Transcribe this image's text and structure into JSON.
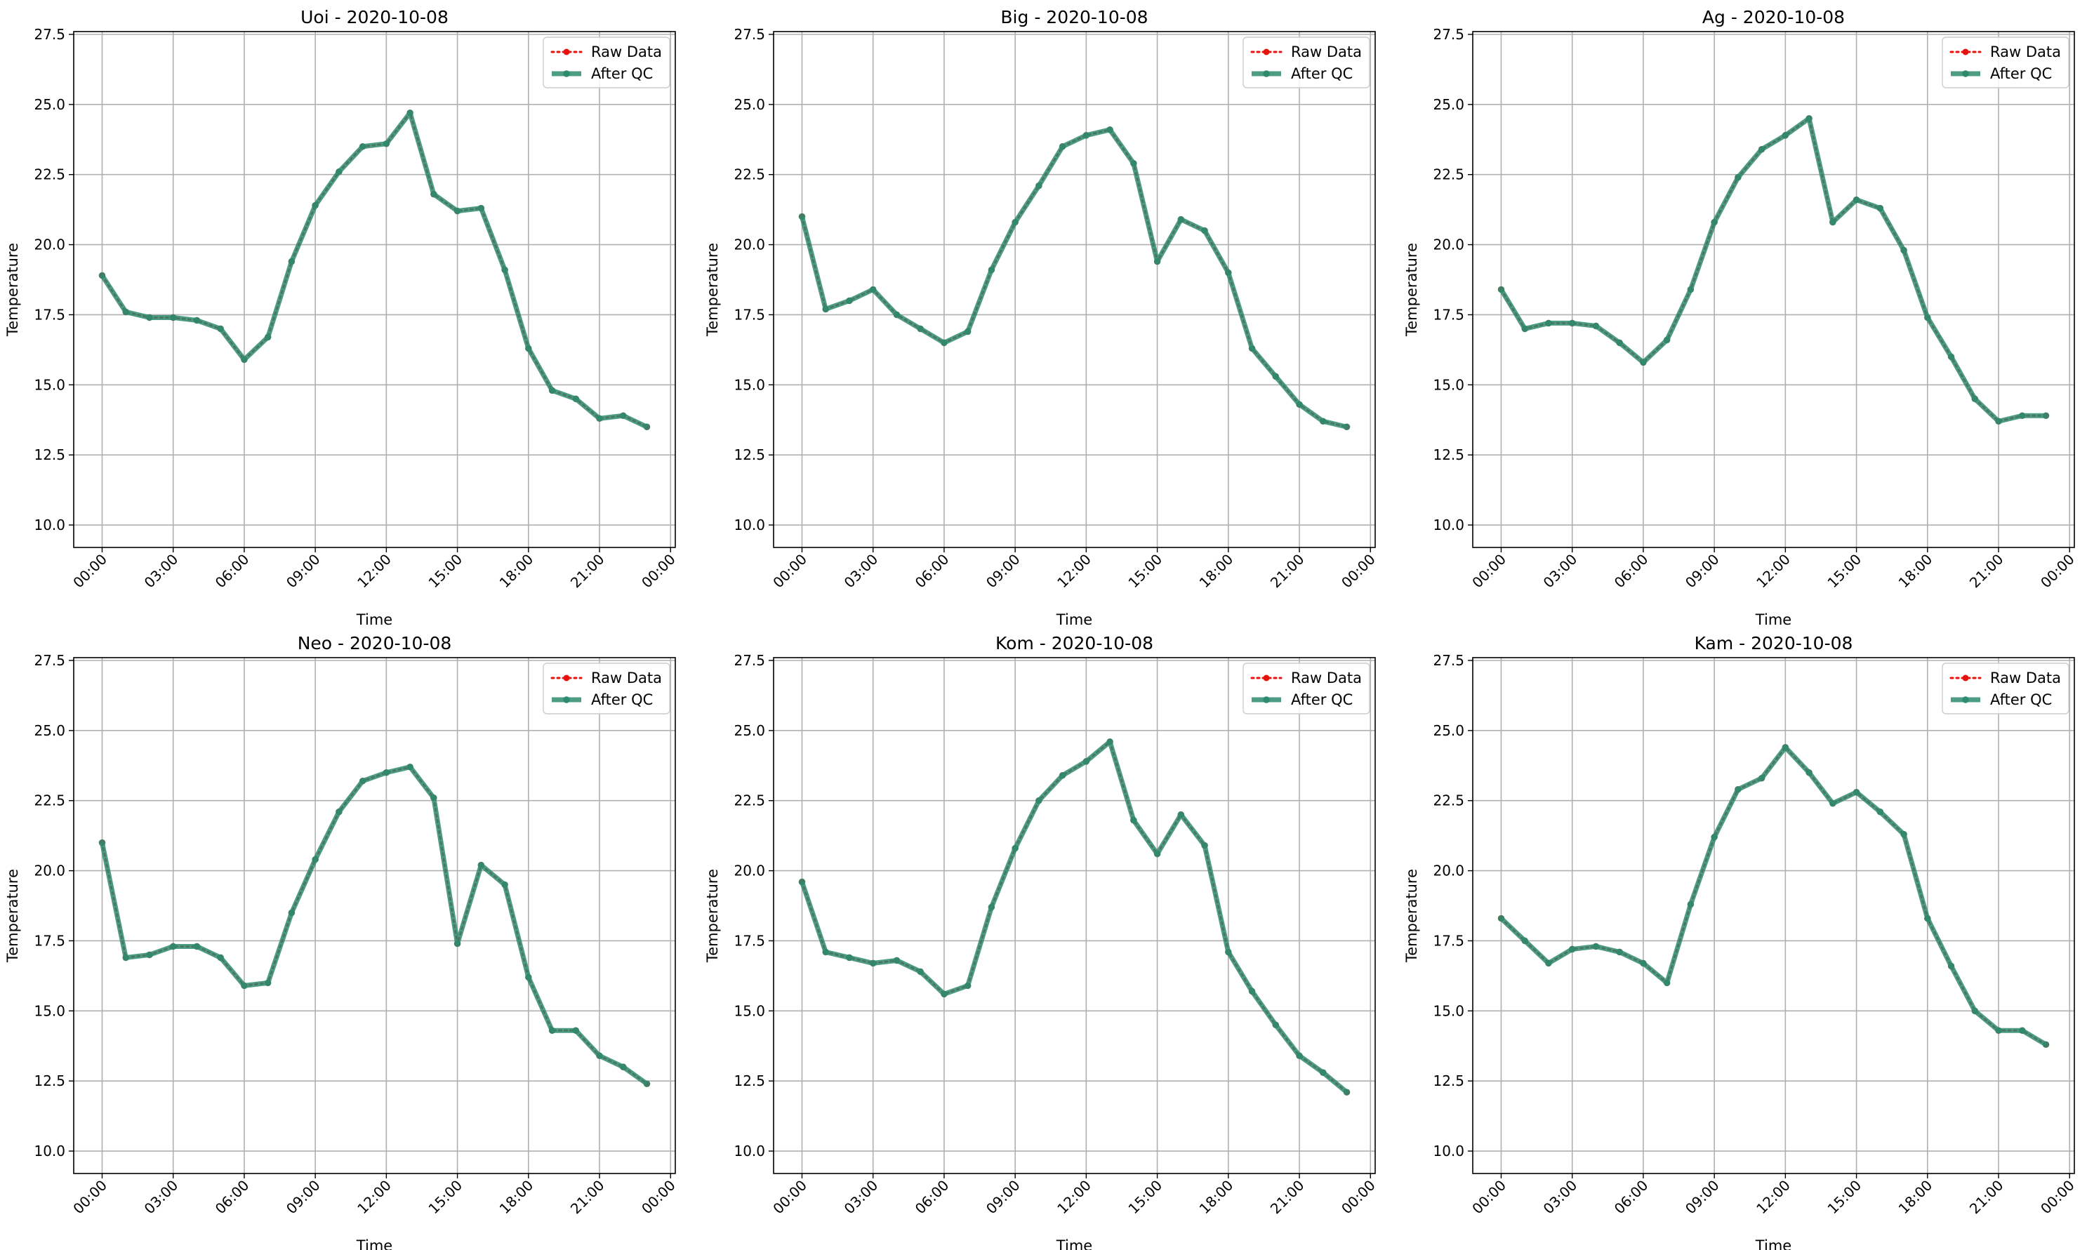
{
  "figure": {
    "ylabel": "Temperature",
    "xlabel": "Time",
    "legend": {
      "raw_label": "Raw Data",
      "qc_label": "After QC",
      "placement": "top-right"
    }
  },
  "colors": {
    "raw": "#e8120c",
    "qc": "#2e8b6e",
    "grid": "#b0b0b0",
    "axis": "#000000"
  },
  "chart_data": [
    {
      "type": "line",
      "title": "Uoi - 2020-10-08",
      "xlabel": "Time",
      "ylabel": "Temperature",
      "xlim": [
        -1.2,
        24.2
      ],
      "ylim": [
        9.2,
        27.6
      ],
      "x_ticks": [
        "00:00",
        "03:00",
        "06:00",
        "09:00",
        "12:00",
        "15:00",
        "18:00",
        "21:00",
        "00:00"
      ],
      "y_ticks": [
        "10.0",
        "12.5",
        "15.0",
        "17.5",
        "20.0",
        "22.5",
        "25.0",
        "27.5"
      ],
      "grid": true,
      "legend": "top-right",
      "x": [
        0,
        1,
        2,
        3,
        4,
        5,
        6,
        7,
        8,
        9,
        10,
        11,
        12,
        13,
        14,
        15,
        16,
        17,
        18,
        19,
        20,
        21,
        22,
        23
      ],
      "series": [
        {
          "name": "Raw Data",
          "values": [
            18.9,
            17.6,
            17.4,
            17.4,
            17.3,
            17.0,
            15.9,
            16.7,
            19.4,
            21.4,
            22.6,
            23.5,
            23.6,
            24.7,
            21.8,
            21.2,
            21.3,
            19.1,
            16.3,
            14.8,
            14.5,
            13.8,
            13.9,
            13.5
          ]
        },
        {
          "name": "After QC",
          "values": [
            18.9,
            17.6,
            17.4,
            17.4,
            17.3,
            17.0,
            15.9,
            16.7,
            19.4,
            21.4,
            22.6,
            23.5,
            23.6,
            24.7,
            21.8,
            21.2,
            21.3,
            19.1,
            16.3,
            14.8,
            14.5,
            13.8,
            13.9,
            13.5
          ]
        }
      ]
    },
    {
      "type": "line",
      "title": "Big - 2020-10-08",
      "xlabel": "Time",
      "ylabel": "Temperature",
      "xlim": [
        -1.2,
        24.2
      ],
      "ylim": [
        9.2,
        27.6
      ],
      "x_ticks": [
        "00:00",
        "03:00",
        "06:00",
        "09:00",
        "12:00",
        "15:00",
        "18:00",
        "21:00",
        "00:00"
      ],
      "y_ticks": [
        "10.0",
        "12.5",
        "15.0",
        "17.5",
        "20.0",
        "22.5",
        "25.0",
        "27.5"
      ],
      "grid": true,
      "legend": "top-right",
      "x": [
        0,
        1,
        2,
        3,
        4,
        5,
        6,
        7,
        8,
        9,
        10,
        11,
        12,
        13,
        14,
        15,
        16,
        17,
        18,
        19,
        20,
        21,
        22,
        23
      ],
      "series": [
        {
          "name": "Raw Data",
          "values": [
            21.0,
            17.7,
            18.0,
            18.4,
            17.5,
            17.0,
            16.5,
            16.9,
            19.1,
            20.8,
            22.1,
            23.5,
            23.9,
            24.1,
            22.9,
            19.4,
            20.9,
            20.5,
            19.0,
            16.3,
            15.3,
            14.3,
            13.7,
            13.5
          ]
        },
        {
          "name": "After QC",
          "values": [
            21.0,
            17.7,
            18.0,
            18.4,
            17.5,
            17.0,
            16.5,
            16.9,
            19.1,
            20.8,
            22.1,
            23.5,
            23.9,
            24.1,
            22.9,
            19.4,
            20.9,
            20.5,
            19.0,
            16.3,
            15.3,
            14.3,
            13.7,
            13.5
          ]
        }
      ]
    },
    {
      "type": "line",
      "title": "Ag - 2020-10-08",
      "xlabel": "Time",
      "ylabel": "Temperature",
      "xlim": [
        -1.2,
        24.2
      ],
      "ylim": [
        9.2,
        27.6
      ],
      "x_ticks": [
        "00:00",
        "03:00",
        "06:00",
        "09:00",
        "12:00",
        "15:00",
        "18:00",
        "21:00",
        "00:00"
      ],
      "y_ticks": [
        "10.0",
        "12.5",
        "15.0",
        "17.5",
        "20.0",
        "22.5",
        "25.0",
        "27.5"
      ],
      "grid": true,
      "legend": "top-right",
      "x": [
        0,
        1,
        2,
        3,
        4,
        5,
        6,
        7,
        8,
        9,
        10,
        11,
        12,
        13,
        14,
        15,
        16,
        17,
        18,
        19,
        20,
        21,
        22,
        23
      ],
      "series": [
        {
          "name": "Raw Data",
          "values": [
            18.4,
            17.0,
            17.2,
            17.2,
            17.1,
            16.5,
            15.8,
            16.6,
            18.4,
            20.8,
            22.4,
            23.4,
            23.9,
            24.5,
            20.8,
            21.6,
            21.3,
            19.8,
            17.4,
            16.0,
            14.5,
            13.7,
            13.9,
            13.9
          ]
        },
        {
          "name": "After QC",
          "values": [
            18.4,
            17.0,
            17.2,
            17.2,
            17.1,
            16.5,
            15.8,
            16.6,
            18.4,
            20.8,
            22.4,
            23.4,
            23.9,
            24.5,
            20.8,
            21.6,
            21.3,
            19.8,
            17.4,
            16.0,
            14.5,
            13.7,
            13.9,
            13.9
          ]
        }
      ]
    },
    {
      "type": "line",
      "title": "Neo - 2020-10-08",
      "xlabel": "Time",
      "ylabel": "Temperature",
      "xlim": [
        -1.2,
        24.2
      ],
      "ylim": [
        9.2,
        27.6
      ],
      "x_ticks": [
        "00:00",
        "03:00",
        "06:00",
        "09:00",
        "12:00",
        "15:00",
        "18:00",
        "21:00",
        "00:00"
      ],
      "y_ticks": [
        "10.0",
        "12.5",
        "15.0",
        "17.5",
        "20.0",
        "22.5",
        "25.0",
        "27.5"
      ],
      "grid": true,
      "legend": "top-right",
      "x": [
        0,
        1,
        2,
        3,
        4,
        5,
        6,
        7,
        8,
        9,
        10,
        11,
        12,
        13,
        14,
        15,
        16,
        17,
        18,
        19,
        20,
        21,
        22,
        23
      ],
      "series": [
        {
          "name": "Raw Data",
          "values": [
            21.0,
            16.9,
            17.0,
            17.3,
            17.3,
            16.9,
            15.9,
            16.0,
            18.5,
            20.4,
            22.1,
            23.2,
            23.5,
            23.7,
            22.6,
            17.4,
            20.2,
            19.5,
            16.2,
            14.3,
            14.3,
            13.4,
            13.0,
            12.4
          ]
        },
        {
          "name": "After QC",
          "values": [
            21.0,
            16.9,
            17.0,
            17.3,
            17.3,
            16.9,
            15.9,
            16.0,
            18.5,
            20.4,
            22.1,
            23.2,
            23.5,
            23.7,
            22.6,
            17.4,
            20.2,
            19.5,
            16.2,
            14.3,
            14.3,
            13.4,
            13.0,
            12.4
          ]
        }
      ]
    },
    {
      "type": "line",
      "title": "Kom - 2020-10-08",
      "xlabel": "Time",
      "ylabel": "Temperature",
      "xlim": [
        -1.2,
        24.2
      ],
      "ylim": [
        9.2,
        27.6
      ],
      "x_ticks": [
        "00:00",
        "03:00",
        "06:00",
        "09:00",
        "12:00",
        "15:00",
        "18:00",
        "21:00",
        "00:00"
      ],
      "y_ticks": [
        "10.0",
        "12.5",
        "15.0",
        "17.5",
        "20.0",
        "22.5",
        "25.0",
        "27.5"
      ],
      "grid": true,
      "legend": "top-right",
      "x": [
        0,
        1,
        2,
        3,
        4,
        5,
        6,
        7,
        8,
        9,
        10,
        11,
        12,
        13,
        14,
        15,
        16,
        17,
        18,
        19,
        20,
        21,
        22,
        23
      ],
      "series": [
        {
          "name": "Raw Data",
          "values": [
            19.6,
            17.1,
            16.9,
            16.7,
            16.8,
            16.4,
            15.6,
            15.9,
            18.7,
            20.8,
            22.5,
            23.4,
            23.9,
            24.6,
            21.8,
            20.6,
            22.0,
            20.9,
            17.1,
            15.7,
            14.5,
            13.4,
            12.8,
            12.1
          ]
        },
        {
          "name": "After QC",
          "values": [
            19.6,
            17.1,
            16.9,
            16.7,
            16.8,
            16.4,
            15.6,
            15.9,
            18.7,
            20.8,
            22.5,
            23.4,
            23.9,
            24.6,
            21.8,
            20.6,
            22.0,
            20.9,
            17.1,
            15.7,
            14.5,
            13.4,
            12.8,
            12.1
          ]
        }
      ]
    },
    {
      "type": "line",
      "title": "Kam - 2020-10-08",
      "xlabel": "Time",
      "ylabel": "Temperature",
      "xlim": [
        -1.2,
        24.2
      ],
      "ylim": [
        9.2,
        27.6
      ],
      "x_ticks": [
        "00:00",
        "03:00",
        "06:00",
        "09:00",
        "12:00",
        "15:00",
        "18:00",
        "21:00",
        "00:00"
      ],
      "y_ticks": [
        "10.0",
        "12.5",
        "15.0",
        "17.5",
        "20.0",
        "22.5",
        "25.0",
        "27.5"
      ],
      "grid": true,
      "legend": "top-right",
      "x": [
        0,
        1,
        2,
        3,
        4,
        5,
        6,
        7,
        8,
        9,
        10,
        11,
        12,
        13,
        14,
        15,
        16,
        17,
        18,
        19,
        20,
        21,
        22,
        23
      ],
      "series": [
        {
          "name": "Raw Data",
          "values": [
            18.3,
            17.5,
            16.7,
            17.2,
            17.3,
            17.1,
            16.7,
            16.0,
            18.8,
            21.2,
            22.9,
            23.3,
            24.4,
            23.5,
            22.4,
            22.8,
            22.1,
            21.3,
            18.3,
            16.6,
            15.0,
            14.3,
            14.3,
            13.8
          ]
        },
        {
          "name": "After QC",
          "values": [
            18.3,
            17.5,
            16.7,
            17.2,
            17.3,
            17.1,
            16.7,
            16.0,
            18.8,
            21.2,
            22.9,
            23.3,
            24.4,
            23.5,
            22.4,
            22.8,
            22.1,
            21.3,
            18.3,
            16.6,
            15.0,
            14.3,
            14.3,
            13.8
          ]
        }
      ]
    }
  ]
}
